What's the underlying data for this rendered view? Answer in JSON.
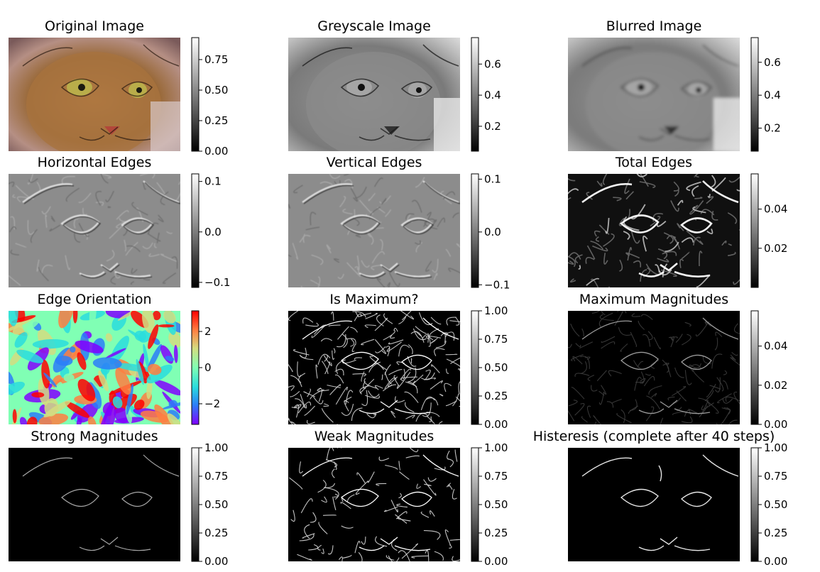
{
  "chart_data": [
    {
      "type": "heatmap",
      "title": "Original Image",
      "subject": "cat-photo-color",
      "colorbar": {
        "ticks": [
          0.0,
          0.25,
          0.5,
          0.75
        ],
        "tick_labels": [
          "0.00",
          "0.25",
          "0.50",
          "0.75"
        ],
        "range": [
          0.0,
          0.93
        ],
        "colormap": "gray"
      }
    },
    {
      "type": "heatmap",
      "title": "Greyscale Image",
      "subject": "cat-photo-gray",
      "colorbar": {
        "ticks": [
          0.2,
          0.4,
          0.6
        ],
        "tick_labels": [
          "0.2",
          "0.4",
          "0.6"
        ],
        "range": [
          0.04,
          0.77
        ],
        "colormap": "gray"
      }
    },
    {
      "type": "heatmap",
      "title": "Blurred Image",
      "subject": "cat-photo-blurred",
      "colorbar": {
        "ticks": [
          0.2,
          0.4,
          0.6
        ],
        "tick_labels": [
          "0.2",
          "0.4",
          "0.6"
        ],
        "range": [
          0.06,
          0.75
        ],
        "colormap": "gray"
      }
    },
    {
      "type": "heatmap",
      "title": "Horizontal Edges",
      "subject": "sobel-x",
      "colorbar": {
        "ticks": [
          -0.1,
          0.0,
          0.1
        ],
        "tick_labels": [
          "−0.1",
          "0.0",
          "0.1"
        ],
        "range": [
          -0.11,
          0.115
        ],
        "colormap": "gray"
      }
    },
    {
      "type": "heatmap",
      "title": "Vertical Edges",
      "subject": "sobel-y",
      "colorbar": {
        "ticks": [
          -0.1,
          0.0,
          0.1
        ],
        "tick_labels": [
          "−0.1",
          "0.0",
          "0.1"
        ],
        "range": [
          -0.105,
          0.11
        ],
        "colormap": "gray"
      }
    },
    {
      "type": "heatmap",
      "title": "Total Edges",
      "subject": "edge-magnitude",
      "colorbar": {
        "ticks": [
          0.02,
          0.04
        ],
        "tick_labels": [
          "0.02",
          "0.04"
        ],
        "range": [
          0.0,
          0.058
        ],
        "colormap": "gray"
      }
    },
    {
      "type": "heatmap",
      "title": "Edge Orientation",
      "subject": "edge-orientation",
      "colorbar": {
        "ticks": [
          -2,
          0,
          2
        ],
        "tick_labels": [
          "−2",
          "0",
          "2"
        ],
        "range": [
          -3.14,
          3.14
        ],
        "colormap": "rainbow"
      }
    },
    {
      "type": "heatmap",
      "title": "Is Maximum?",
      "subject": "non-max-suppression-mask",
      "colorbar": {
        "ticks": [
          0.0,
          0.25,
          0.5,
          0.75,
          1.0
        ],
        "tick_labels": [
          "0.00",
          "0.25",
          "0.50",
          "0.75",
          "1.00"
        ],
        "range": [
          0.0,
          1.0
        ],
        "colormap": "gray"
      }
    },
    {
      "type": "heatmap",
      "title": "Maximum Magnitudes",
      "subject": "suppressed-magnitudes",
      "colorbar": {
        "ticks": [
          0.0,
          0.02,
          0.04
        ],
        "tick_labels": [
          "0.00",
          "0.02",
          "0.04"
        ],
        "range": [
          0.0,
          0.058
        ],
        "colormap": "gray"
      }
    },
    {
      "type": "heatmap",
      "title": "Strong Magnitudes",
      "subject": "strong-edges",
      "colorbar": {
        "ticks": [
          0.0,
          0.25,
          0.5,
          0.75,
          1.0
        ],
        "tick_labels": [
          "0.00",
          "0.25",
          "0.50",
          "0.75",
          "1.00"
        ],
        "range": [
          0.0,
          1.0
        ],
        "colormap": "gray"
      }
    },
    {
      "type": "heatmap",
      "title": "Weak Magnitudes",
      "subject": "weak-edges",
      "colorbar": {
        "ticks": [
          0.0,
          0.25,
          0.5,
          0.75,
          1.0
        ],
        "tick_labels": [
          "0.00",
          "0.25",
          "0.50",
          "0.75",
          "1.00"
        ],
        "range": [
          0.0,
          1.0
        ],
        "colormap": "gray"
      }
    },
    {
      "type": "heatmap",
      "title": "Histeresis (complete after 40 steps)",
      "subject": "hysteresis-result",
      "colorbar": {
        "ticks": [
          0.0,
          0.25,
          0.5,
          0.75,
          1.0
        ],
        "tick_labels": [
          "0.00",
          "0.25",
          "0.50",
          "0.75",
          "1.00"
        ],
        "range": [
          0.0,
          1.0
        ],
        "colormap": "gray"
      }
    }
  ]
}
